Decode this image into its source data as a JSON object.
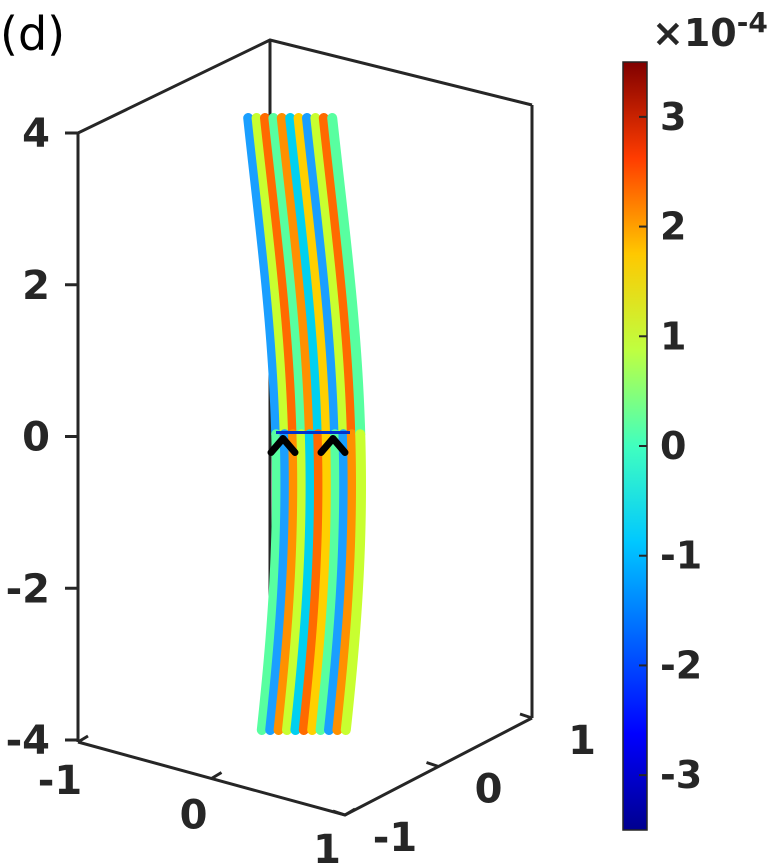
{
  "chart_data": {
    "type": "surface",
    "panel_label": "(d)",
    "axes": {
      "x": {
        "ticks": [
          -1,
          0,
          1
        ],
        "tick_labels": [
          "-1",
          "0",
          "1"
        ],
        "lim": [
          -1,
          1
        ]
      },
      "y": {
        "ticks": [
          -1,
          0,
          1
        ],
        "tick_labels": [
          "-1",
          "0",
          "1"
        ],
        "lim": [
          -1,
          1
        ]
      },
      "z": {
        "ticks": [
          -4,
          -2,
          0,
          2,
          4
        ],
        "tick_labels": [
          "-4",
          "-2",
          "0",
          "2",
          "4"
        ],
        "lim": [
          -4,
          4
        ]
      }
    },
    "colorbar": {
      "colormap": "jet",
      "lim": [
        -3.5,
        3.5
      ],
      "ticks": [
        -3,
        -2,
        -1,
        0,
        1,
        2,
        3
      ],
      "tick_labels": [
        "-3",
        "-2",
        "-1",
        "0",
        "1",
        "2",
        "3"
      ],
      "multiplier_base": "×10",
      "multiplier_exponent": "-4"
    },
    "markers": [
      {
        "z": 0,
        "symbol": "^"
      },
      {
        "z": 0,
        "symbol": "^"
      }
    ],
    "grid": false,
    "colors": {
      "axis": "#262626",
      "jet": [
        "#00008f",
        "#0000ff",
        "#0080ff",
        "#00ffff",
        "#80ff80",
        "#ffff00",
        "#ff8000",
        "#ff0000",
        "#800000"
      ]
    }
  }
}
